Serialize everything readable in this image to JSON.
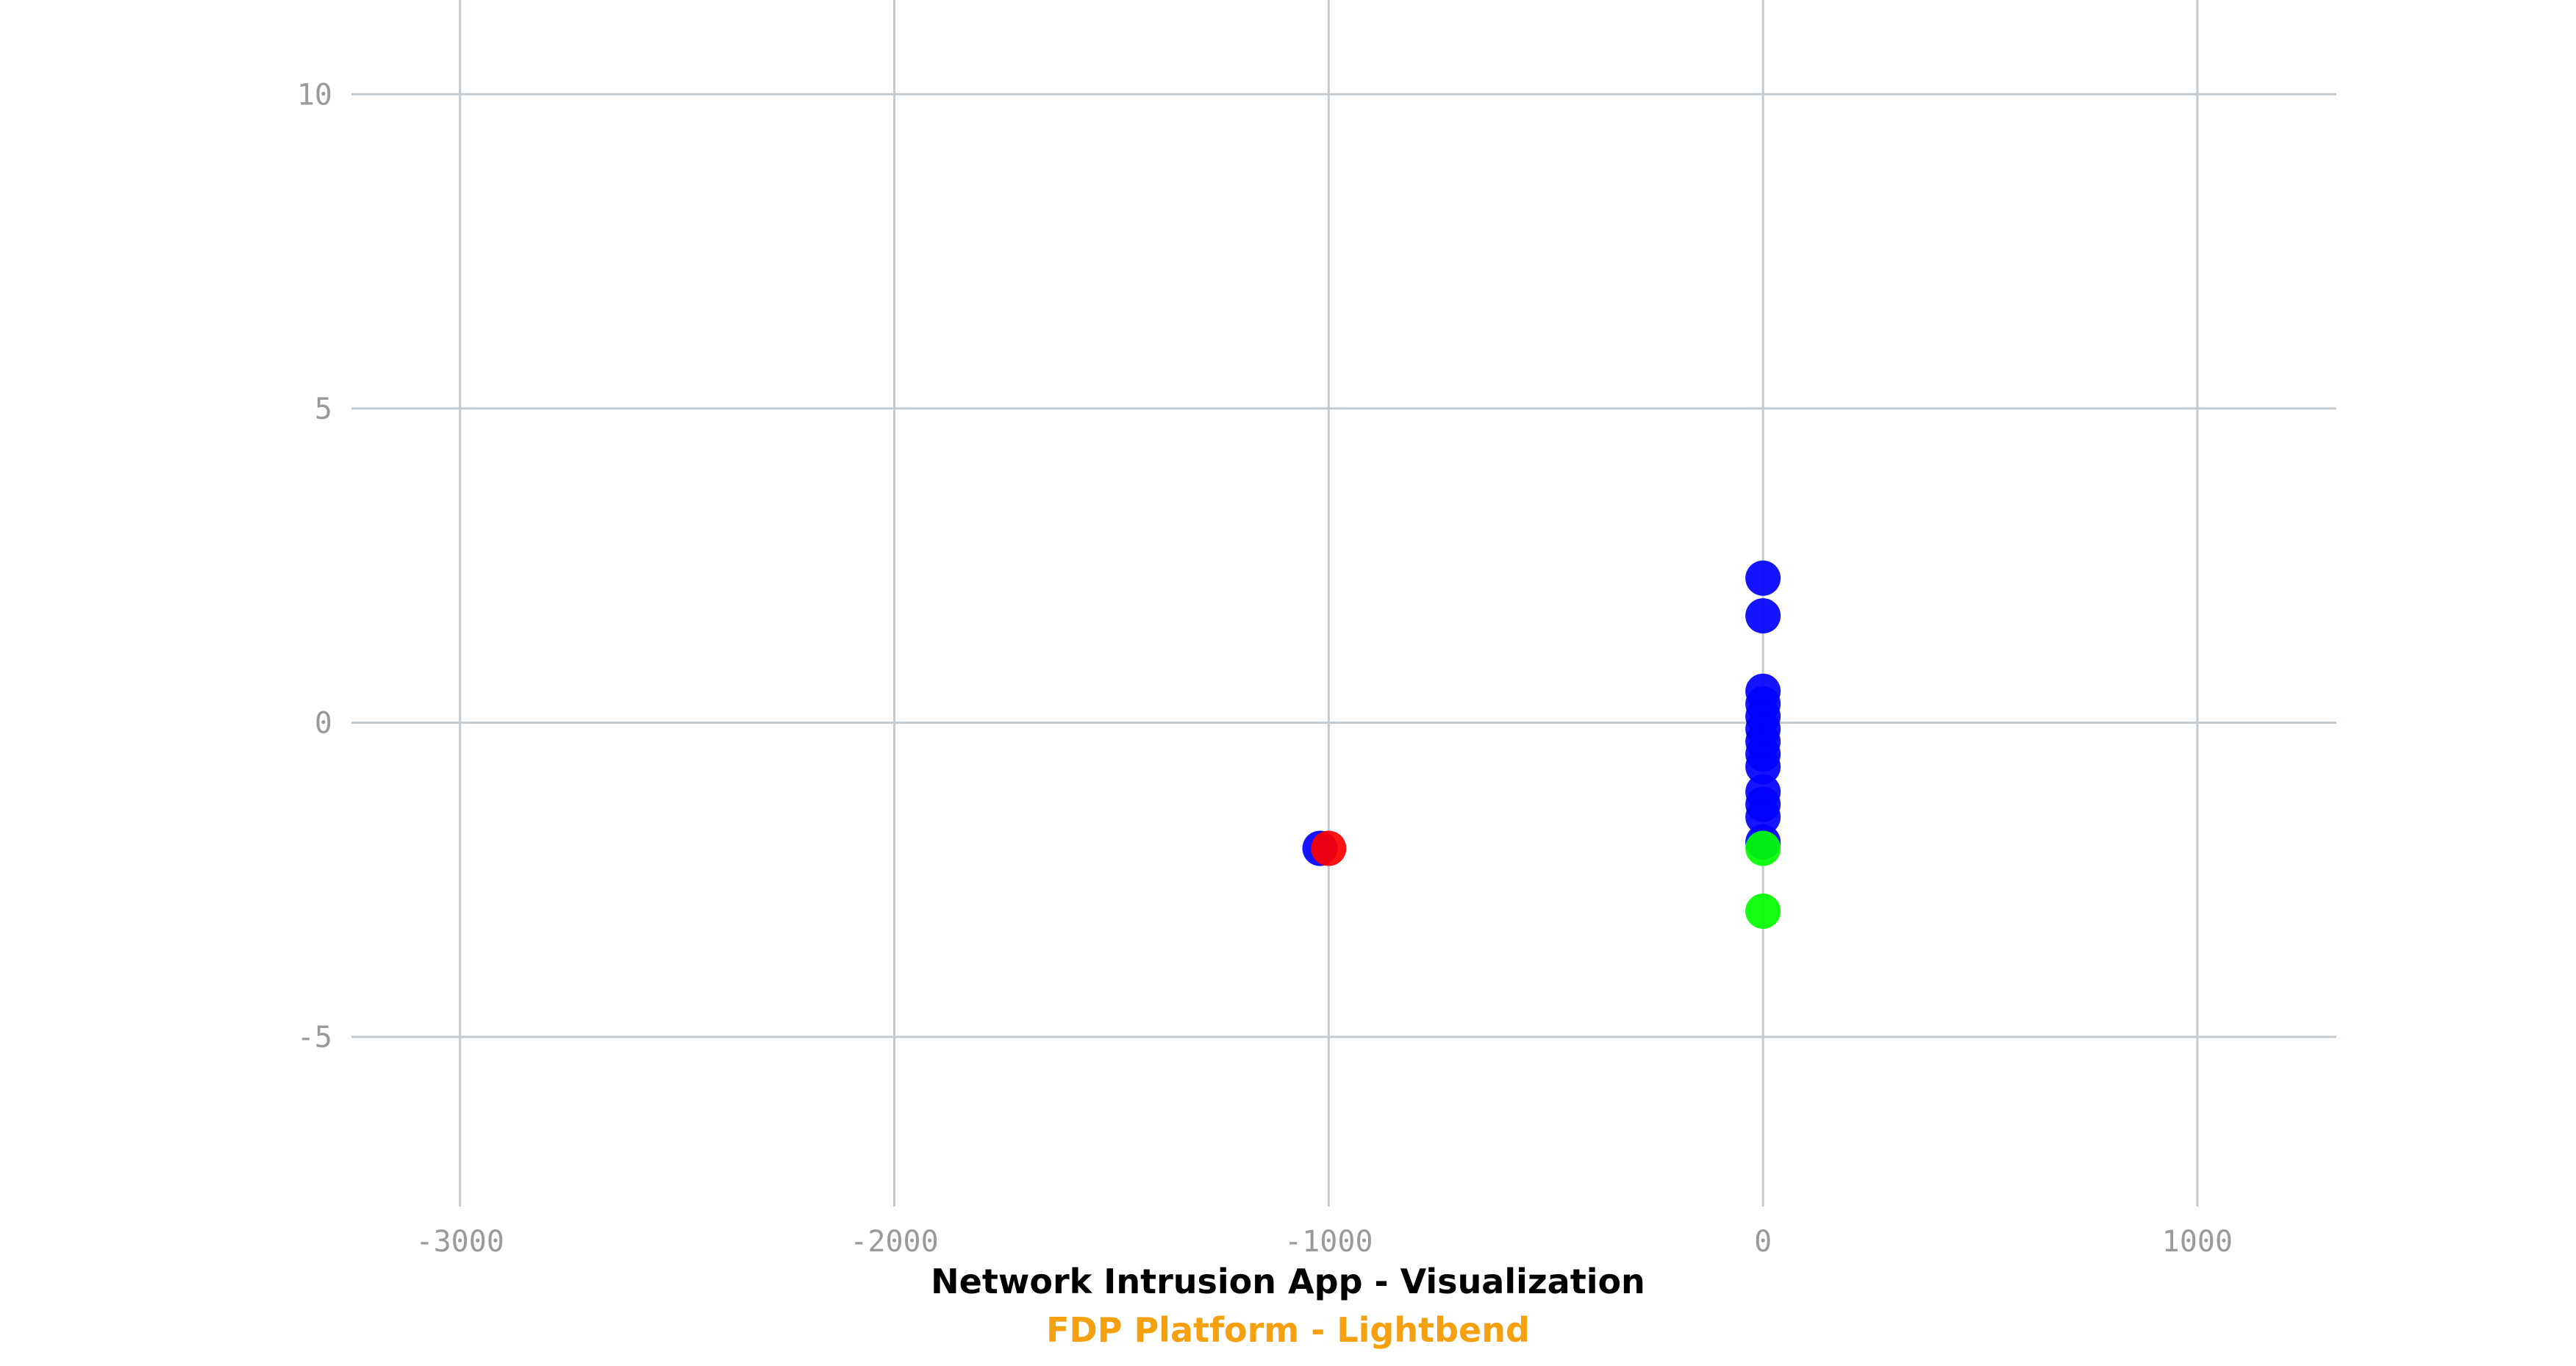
{
  "captions": {
    "title": "Network Intrusion App - Visualization",
    "subtitle": "FDP Platform - Lightbend"
  },
  "colors": {
    "subtitle": "#f5a10f",
    "grid": "#c3cbd1",
    "tick_label": "#9a9a9a"
  },
  "chart_data": {
    "type": "scatter",
    "title": "",
    "xlabel": "",
    "ylabel": "",
    "xlim": [
      -3250,
      1320
    ],
    "ylim": [
      -7.7,
      11.5
    ],
    "x_ticks": [
      -3000,
      -2000,
      -1000,
      0,
      1000
    ],
    "x_tick_labels": [
      "-3000",
      "-2000",
      "-1000",
      "0",
      "1000"
    ],
    "y_ticks": [
      10,
      5,
      0,
      -5
    ],
    "y_tick_labels": [
      "10",
      "5",
      "0",
      "-5"
    ],
    "grid": true,
    "legend": "none",
    "series": [
      {
        "color": "#0000ff",
        "points": [
          {
            "x": 0,
            "y": 2.3
          },
          {
            "x": 0,
            "y": 1.7
          },
          {
            "x": 0,
            "y": 0.5
          },
          {
            "x": 0,
            "y": 0.3
          },
          {
            "x": 0,
            "y": 0.1
          },
          {
            "x": 0,
            "y": -0.1
          },
          {
            "x": 0,
            "y": -0.3
          },
          {
            "x": 0,
            "y": -0.5
          },
          {
            "x": 0,
            "y": -0.7
          },
          {
            "x": 0,
            "y": -1.1
          },
          {
            "x": 0,
            "y": -1.3
          },
          {
            "x": 0,
            "y": -1.5
          },
          {
            "x": 0,
            "y": -1.9
          },
          {
            "x": -1020,
            "y": -2.0
          }
        ]
      },
      {
        "color": "#ff0000",
        "points": [
          {
            "x": -1000,
            "y": -2.0
          }
        ]
      },
      {
        "color": "#00ff00",
        "points": [
          {
            "x": 0,
            "y": -2.0
          },
          {
            "x": 0,
            "y": -3.0
          }
        ]
      }
    ]
  }
}
